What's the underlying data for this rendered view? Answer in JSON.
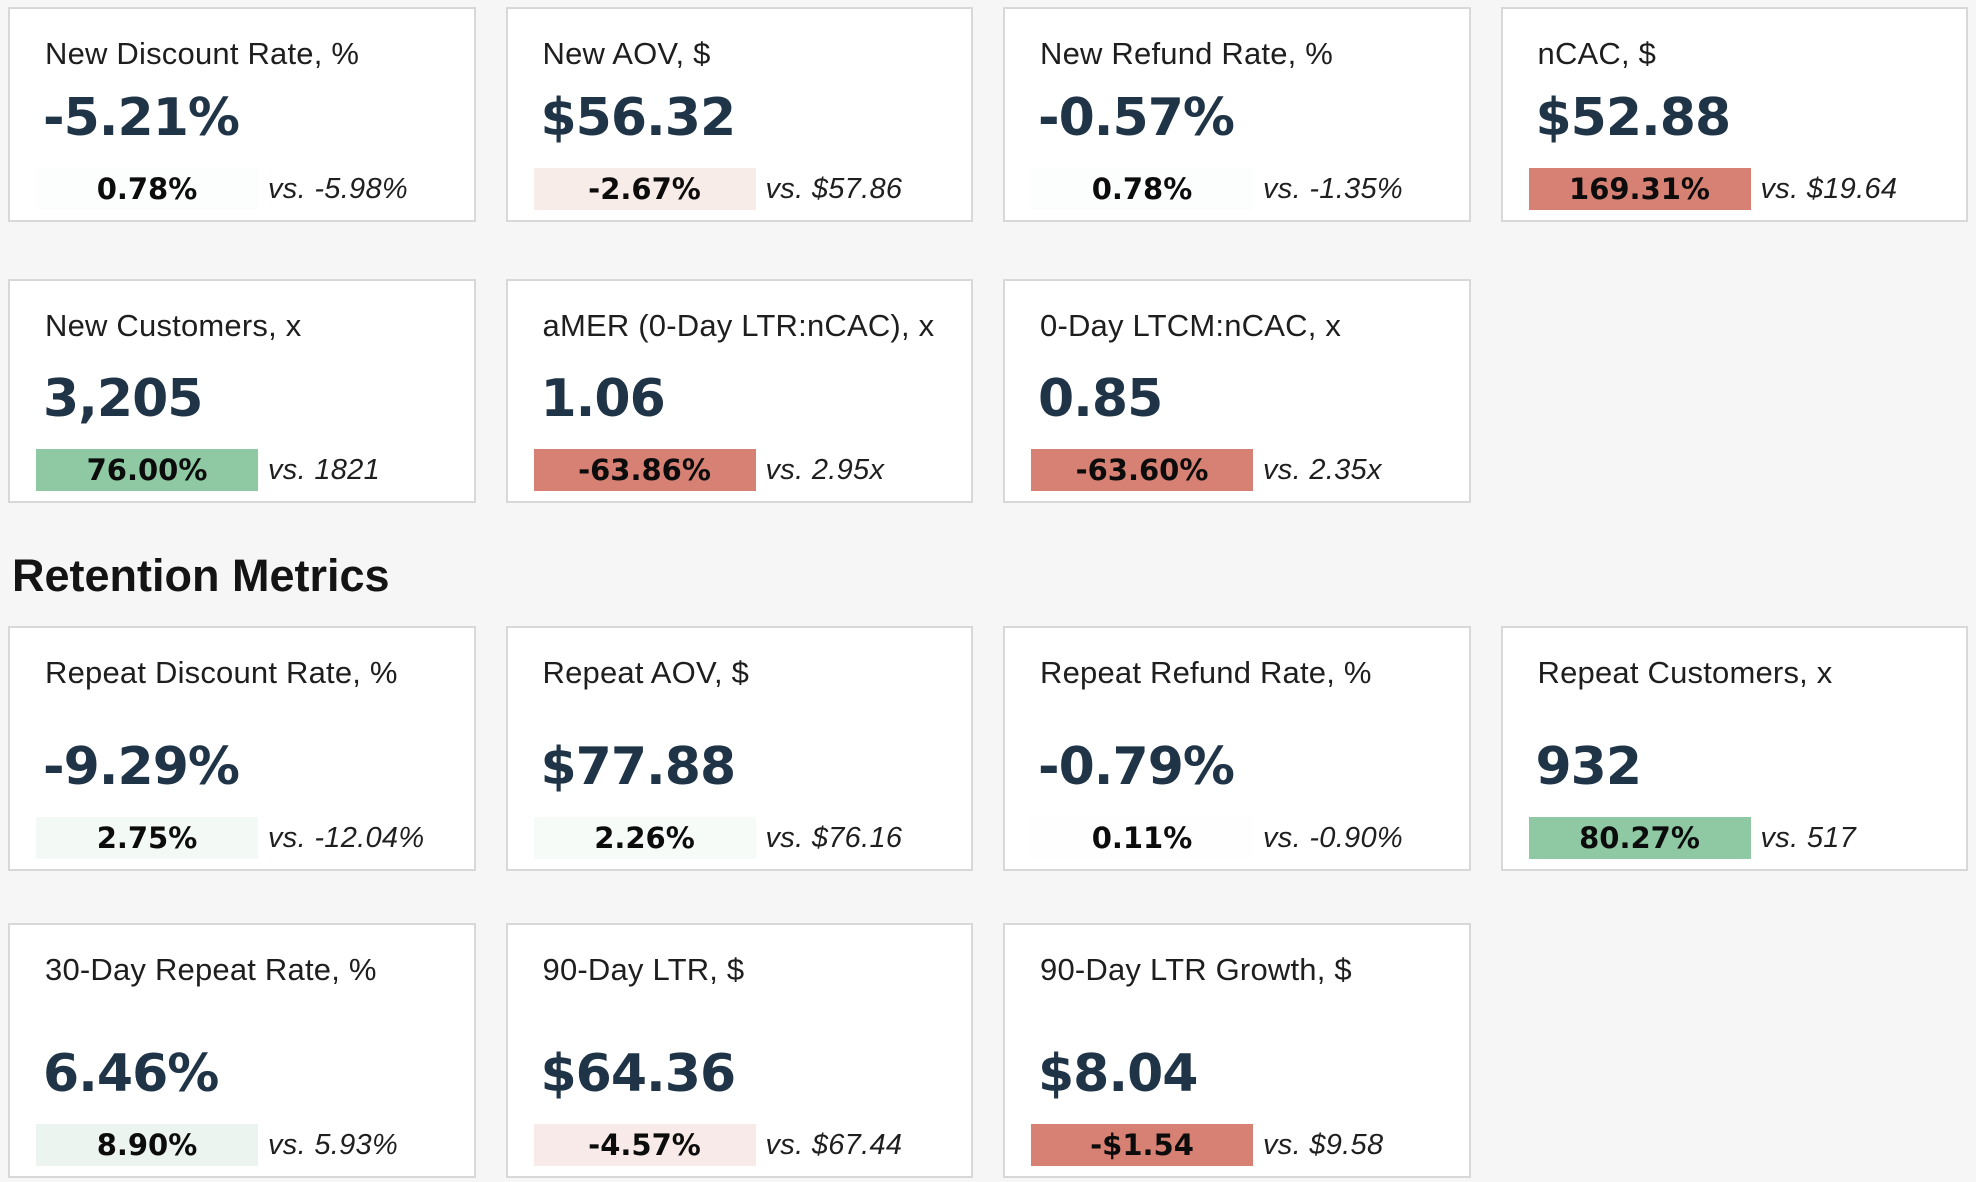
{
  "colors": {
    "page_background": "#f6f6f7",
    "card_background": "#ffffff",
    "card_border": "#d8d8d8",
    "value_text": "#203447",
    "positive_badge": "#8ec9a3",
    "negative_badge": "#d68174"
  },
  "sections": [
    {
      "title": "",
      "cards": [
        {
          "label": "New Discount Rate, %",
          "value": "-5.21%",
          "change": "0.78%",
          "change_bg": "#fcfefd",
          "vs": "vs. -5.98%"
        },
        {
          "label": "New AOV, $",
          "value": "$56.32",
          "change": "-2.67%",
          "change_bg": "#f8ece9",
          "vs": "vs. $57.86"
        },
        {
          "label": "New Refund Rate, %",
          "value": "-0.57%",
          "change": "0.78%",
          "change_bg": "#fcfefd",
          "vs": "vs. -1.35%"
        },
        {
          "label": "nCAC, $",
          "value": "$52.88",
          "change": "169.31%",
          "change_bg": "#d68174",
          "vs": "vs. $19.64"
        },
        {
          "label": "New Customers, x",
          "value": "3,205",
          "change": "76.00%",
          "change_bg": "#8ec9a3",
          "vs": "vs. 1821"
        },
        {
          "label": "aMER (0-Day LTR:nCAC), x",
          "value": "1.06",
          "change": "-63.86%",
          "change_bg": "#d68174",
          "vs": "vs. 2.95x"
        },
        {
          "label": "0-Day LTCM:nCAC, x",
          "value": "0.85",
          "change": "-63.60%",
          "change_bg": "#d68174",
          "vs": "vs. 2.35x"
        }
      ]
    },
    {
      "title": "Retention Metrics",
      "cards": [
        {
          "label": "Repeat Discount Rate, %",
          "value": "-9.29%",
          "change": "2.75%",
          "change_bg": "#f3f9f5",
          "vs": "vs. -12.04%"
        },
        {
          "label": "Repeat AOV, $",
          "value": "$77.88",
          "change": "2.26%",
          "change_bg": "#f6fbf8",
          "vs": "vs. $76.16"
        },
        {
          "label": "Repeat Refund Rate, %",
          "value": "-0.79%",
          "change": "0.11%",
          "change_bg": "#fdfefd",
          "vs": "vs. -0.90%"
        },
        {
          "label": "Repeat Customers, x",
          "value": "932",
          "change": "80.27%",
          "change_bg": "#8ec9a3",
          "vs": "vs. 517"
        },
        {
          "label": "30-Day Repeat Rate, %",
          "value": "6.46%",
          "change": "8.90%",
          "change_bg": "#ecf4ef",
          "vs": "vs. 5.93%"
        },
        {
          "label": "90-Day LTR, $",
          "value": "$64.36",
          "change": "-4.57%",
          "change_bg": "#f8eae8",
          "vs": "vs. $67.44"
        },
        {
          "label": "90-Day LTR Growth, $",
          "value": "$8.04",
          "change": "-$1.54",
          "change_bg": "#d68174",
          "vs": "vs. $9.58"
        }
      ]
    }
  ]
}
